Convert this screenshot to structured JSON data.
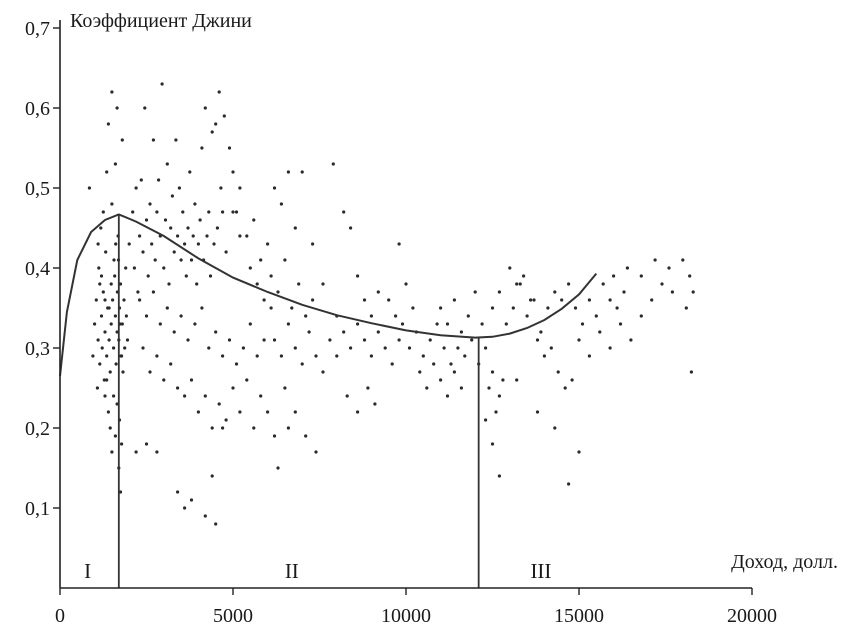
{
  "chart_data": {
    "type": "scatter",
    "title": "",
    "ylabel": "Коэффициент Джини",
    "xlabel": "Доход, долл.",
    "xlim": [
      0,
      20000
    ],
    "ylim": [
      0,
      0.7
    ],
    "x_ticks": [
      {
        "value": 0,
        "label": "0"
      },
      {
        "value": 5000,
        "label": "5000"
      },
      {
        "value": 10000,
        "label": "10000"
      },
      {
        "value": 15000,
        "label": "15000"
      },
      {
        "value": 20000,
        "label": "20000"
      }
    ],
    "y_ticks": [
      {
        "value": 0.1,
        "label": "0,1"
      },
      {
        "value": 0.2,
        "label": "0,2"
      },
      {
        "value": 0.3,
        "label": "0,3"
      },
      {
        "value": 0.4,
        "label": "0,4"
      },
      {
        "value": 0.5,
        "label": "0,5"
      },
      {
        "value": 0.6,
        "label": "0,6"
      },
      {
        "value": 0.7,
        "label": "0,7"
      }
    ],
    "zones": [
      {
        "label": "I",
        "x": 800
      },
      {
        "label": "II",
        "x": 6700
      },
      {
        "label": "III",
        "x": 13900
      }
    ],
    "dividers": [
      1700,
      12100
    ],
    "trend_curve": [
      [
        0,
        0.265
      ],
      [
        200,
        0.345
      ],
      [
        500,
        0.41
      ],
      [
        900,
        0.445
      ],
      [
        1300,
        0.46
      ],
      [
        1700,
        0.467
      ],
      [
        2200,
        0.458
      ],
      [
        3000,
        0.44
      ],
      [
        4000,
        0.412
      ],
      [
        5000,
        0.388
      ],
      [
        6000,
        0.37
      ],
      [
        7000,
        0.354
      ],
      [
        8000,
        0.341
      ],
      [
        9000,
        0.331
      ],
      [
        10000,
        0.322
      ],
      [
        11000,
        0.316
      ],
      [
        12000,
        0.313
      ],
      [
        12500,
        0.314
      ],
      [
        13000,
        0.318
      ],
      [
        13500,
        0.325
      ],
      [
        14000,
        0.335
      ],
      [
        14500,
        0.349
      ],
      [
        15000,
        0.367
      ],
      [
        15500,
        0.393
      ]
    ],
    "points": [
      [
        850,
        0.5
      ],
      [
        950,
        0.29
      ],
      [
        1000,
        0.33
      ],
      [
        1050,
        0.36
      ],
      [
        1080,
        0.25
      ],
      [
        1100,
        0.31
      ],
      [
        1120,
        0.4
      ],
      [
        1150,
        0.28
      ],
      [
        1180,
        0.45
      ],
      [
        1200,
        0.34
      ],
      [
        1220,
        0.3
      ],
      [
        1250,
        0.37
      ],
      [
        1280,
        0.26
      ],
      [
        1300,
        0.32
      ],
      [
        1320,
        0.42
      ],
      [
        1350,
        0.29
      ],
      [
        1380,
        0.35
      ],
      [
        1400,
        0.58
      ],
      [
        1420,
        0.31
      ],
      [
        1450,
        0.27
      ],
      [
        1480,
        0.33
      ],
      [
        1500,
        0.48
      ],
      [
        1520,
        0.36
      ],
      [
        1550,
        0.3
      ],
      [
        1580,
        0.39
      ],
      [
        1600,
        0.34
      ],
      [
        1620,
        0.28
      ],
      [
        1650,
        0.32
      ],
      [
        1680,
        0.44
      ],
      [
        1700,
        0.31
      ],
      [
        1720,
        0.35
      ],
      [
        1750,
        0.38
      ],
      [
        1780,
        0.29
      ],
      [
        1800,
        0.33
      ],
      [
        1820,
        0.27
      ],
      [
        1850,
        0.36
      ],
      [
        1870,
        0.3
      ],
      [
        1900,
        0.4
      ],
      [
        1920,
        0.34
      ],
      [
        1950,
        0.31
      ],
      [
        1400,
        0.22
      ],
      [
        1450,
        0.2
      ],
      [
        1500,
        0.17
      ],
      [
        1550,
        0.24
      ],
      [
        1600,
        0.19
      ],
      [
        1650,
        0.23
      ],
      [
        1700,
        0.15
      ],
      [
        1720,
        0.21
      ],
      [
        1750,
        0.12
      ],
      [
        1780,
        0.18
      ],
      [
        1300,
        0.24
      ],
      [
        1350,
        0.26
      ],
      [
        1420,
        0.35
      ],
      [
        1480,
        0.38
      ],
      [
        1560,
        0.41
      ],
      [
        1610,
        0.43
      ],
      [
        1660,
        0.37
      ],
      [
        1690,
        0.41
      ],
      [
        1730,
        0.33
      ],
      [
        1760,
        0.29
      ],
      [
        1500,
        0.62
      ],
      [
        1650,
        0.6
      ],
      [
        1800,
        0.56
      ],
      [
        1600,
        0.53
      ],
      [
        1350,
        0.52
      ],
      [
        1250,
        0.47
      ],
      [
        1150,
        0.38
      ],
      [
        1100,
        0.43
      ],
      [
        1200,
        0.39
      ],
      [
        1300,
        0.36
      ],
      [
        2000,
        0.43
      ],
      [
        2100,
        0.47
      ],
      [
        2150,
        0.4
      ],
      [
        2200,
        0.5
      ],
      [
        2250,
        0.37
      ],
      [
        2300,
        0.44
      ],
      [
        2350,
        0.51
      ],
      [
        2400,
        0.42
      ],
      [
        2450,
        0.6
      ],
      [
        2500,
        0.46
      ],
      [
        2550,
        0.39
      ],
      [
        2600,
        0.48
      ],
      [
        2650,
        0.43
      ],
      [
        2700,
        0.56
      ],
      [
        2750,
        0.41
      ],
      [
        2800,
        0.47
      ],
      [
        2850,
        0.51
      ],
      [
        2900,
        0.44
      ],
      [
        2950,
        0.63
      ],
      [
        3000,
        0.4
      ],
      [
        3050,
        0.46
      ],
      [
        3100,
        0.53
      ],
      [
        3150,
        0.38
      ],
      [
        3200,
        0.45
      ],
      [
        3250,
        0.49
      ],
      [
        3300,
        0.42
      ],
      [
        3350,
        0.56
      ],
      [
        3400,
        0.44
      ],
      [
        3450,
        0.5
      ],
      [
        3500,
        0.41
      ],
      [
        3550,
        0.47
      ],
      [
        3600,
        0.43
      ],
      [
        3650,
        0.39
      ],
      [
        3700,
        0.45
      ],
      [
        3750,
        0.52
      ],
      [
        3800,
        0.41
      ],
      [
        3850,
        0.44
      ],
      [
        3900,
        0.48
      ],
      [
        3950,
        0.38
      ],
      [
        4000,
        0.43
      ],
      [
        4050,
        0.46
      ],
      [
        4100,
        0.55
      ],
      [
        4150,
        0.41
      ],
      [
        4200,
        0.6
      ],
      [
        4250,
        0.44
      ],
      [
        4300,
        0.47
      ],
      [
        4350,
        0.39
      ],
      [
        4400,
        0.57
      ],
      [
        4450,
        0.43
      ],
      [
        4500,
        0.58
      ],
      [
        4550,
        0.45
      ],
      [
        4600,
        0.62
      ],
      [
        4650,
        0.5
      ],
      [
        4700,
        0.47
      ],
      [
        4750,
        0.59
      ],
      [
        4800,
        0.42
      ],
      [
        4900,
        0.55
      ],
      [
        5000,
        0.52
      ],
      [
        5100,
        0.47
      ],
      [
        5200,
        0.44
      ],
      [
        2300,
        0.36
      ],
      [
        2500,
        0.34
      ],
      [
        2700,
        0.37
      ],
      [
        2900,
        0.33
      ],
      [
        3100,
        0.35
      ],
      [
        3300,
        0.32
      ],
      [
        3500,
        0.34
      ],
      [
        3700,
        0.31
      ],
      [
        3900,
        0.33
      ],
      [
        4100,
        0.35
      ],
      [
        4300,
        0.3
      ],
      [
        4500,
        0.32
      ],
      [
        4700,
        0.29
      ],
      [
        4900,
        0.31
      ],
      [
        5100,
        0.28
      ],
      [
        5300,
        0.3
      ],
      [
        5500,
        0.33
      ],
      [
        5700,
        0.29
      ],
      [
        5900,
        0.31
      ],
      [
        6100,
        0.35
      ],
      [
        2400,
        0.3
      ],
      [
        2600,
        0.27
      ],
      [
        2800,
        0.29
      ],
      [
        3000,
        0.26
      ],
      [
        3200,
        0.28
      ],
      [
        3400,
        0.25
      ],
      [
        3600,
        0.24
      ],
      [
        3800,
        0.26
      ],
      [
        4000,
        0.22
      ],
      [
        4200,
        0.24
      ],
      [
        4400,
        0.2
      ],
      [
        4600,
        0.23
      ],
      [
        4800,
        0.21
      ],
      [
        5000,
        0.25
      ],
      [
        5200,
        0.22
      ],
      [
        5400,
        0.26
      ],
      [
        5600,
        0.2
      ],
      [
        5800,
        0.24
      ],
      [
        6000,
        0.22
      ],
      [
        6200,
        0.19
      ],
      [
        2200,
        0.17
      ],
      [
        2500,
        0.18
      ],
      [
        2800,
        0.17
      ],
      [
        3400,
        0.12
      ],
      [
        3600,
        0.1
      ],
      [
        3800,
        0.11
      ],
      [
        4200,
        0.09
      ],
      [
        4500,
        0.08
      ],
      [
        4400,
        0.14
      ],
      [
        4700,
        0.2
      ],
      [
        5000,
        0.47
      ],
      [
        5200,
        0.5
      ],
      [
        5400,
        0.44
      ],
      [
        5600,
        0.46
      ],
      [
        5800,
        0.41
      ],
      [
        6000,
        0.43
      ],
      [
        6200,
        0.5
      ],
      [
        6400,
        0.48
      ],
      [
        6600,
        0.52
      ],
      [
        6800,
        0.45
      ],
      [
        5500,
        0.4
      ],
      [
        5700,
        0.38
      ],
      [
        5900,
        0.36
      ],
      [
        6100,
        0.39
      ],
      [
        6300,
        0.37
      ],
      [
        6500,
        0.41
      ],
      [
        6700,
        0.35
      ],
      [
        6900,
        0.38
      ],
      [
        7100,
        0.34
      ],
      [
        7300,
        0.36
      ],
      [
        6200,
        0.31
      ],
      [
        6400,
        0.29
      ],
      [
        6600,
        0.33
      ],
      [
        6800,
        0.3
      ],
      [
        7000,
        0.28
      ],
      [
        7200,
        0.32
      ],
      [
        7400,
        0.29
      ],
      [
        7600,
        0.27
      ],
      [
        7800,
        0.31
      ],
      [
        8000,
        0.29
      ],
      [
        7000,
        0.52
      ],
      [
        7300,
        0.43
      ],
      [
        7600,
        0.38
      ],
      [
        7900,
        0.53
      ],
      [
        8200,
        0.47
      ],
      [
        8400,
        0.45
      ],
      [
        8600,
        0.39
      ],
      [
        8800,
        0.36
      ],
      [
        9000,
        0.34
      ],
      [
        9200,
        0.37
      ],
      [
        6500,
        0.25
      ],
      [
        6800,
        0.22
      ],
      [
        7100,
        0.19
      ],
      [
        7400,
        0.17
      ],
      [
        6300,
        0.15
      ],
      [
        6600,
        0.2
      ],
      [
        8300,
        0.24
      ],
      [
        8600,
        0.22
      ],
      [
        8900,
        0.25
      ],
      [
        9100,
        0.23
      ],
      [
        8000,
        0.34
      ],
      [
        8200,
        0.32
      ],
      [
        8400,
        0.3
      ],
      [
        8600,
        0.33
      ],
      [
        8800,
        0.31
      ],
      [
        9000,
        0.29
      ],
      [
        9200,
        0.32
      ],
      [
        9400,
        0.3
      ],
      [
        9600,
        0.28
      ],
      [
        9800,
        0.31
      ],
      [
        9500,
        0.36
      ],
      [
        9700,
        0.34
      ],
      [
        9900,
        0.33
      ],
      [
        10100,
        0.3
      ],
      [
        10300,
        0.32
      ],
      [
        10500,
        0.29
      ],
      [
        10700,
        0.31
      ],
      [
        10900,
        0.33
      ],
      [
        11100,
        0.3
      ],
      [
        11300,
        0.28
      ],
      [
        9800,
        0.43
      ],
      [
        10000,
        0.38
      ],
      [
        10200,
        0.35
      ],
      [
        10400,
        0.27
      ],
      [
        10600,
        0.25
      ],
      [
        10800,
        0.28
      ],
      [
        11000,
        0.26
      ],
      [
        11200,
        0.24
      ],
      [
        11400,
        0.27
      ],
      [
        11600,
        0.25
      ],
      [
        11000,
        0.35
      ],
      [
        11200,
        0.33
      ],
      [
        11400,
        0.36
      ],
      [
        11600,
        0.32
      ],
      [
        11800,
        0.34
      ],
      [
        12000,
        0.37
      ],
      [
        11500,
        0.3
      ],
      [
        11700,
        0.29
      ],
      [
        11900,
        0.31
      ],
      [
        12200,
        0.33
      ],
      [
        12100,
        0.28
      ],
      [
        12300,
        0.3
      ],
      [
        12400,
        0.25
      ],
      [
        12500,
        0.27
      ],
      [
        12600,
        0.22
      ],
      [
        12700,
        0.24
      ],
      [
        12800,
        0.26
      ],
      [
        12300,
        0.21
      ],
      [
        12500,
        0.18
      ],
      [
        12700,
        0.14
      ],
      [
        12500,
        0.35
      ],
      [
        12700,
        0.37
      ],
      [
        12900,
        0.33
      ],
      [
        13100,
        0.35
      ],
      [
        13300,
        0.38
      ],
      [
        13500,
        0.34
      ],
      [
        13700,
        0.36
      ],
      [
        13900,
        0.32
      ],
      [
        14100,
        0.35
      ],
      [
        14300,
        0.37
      ],
      [
        13000,
        0.4
      ],
      [
        13200,
        0.38
      ],
      [
        13400,
        0.39
      ],
      [
        13600,
        0.36
      ],
      [
        13800,
        0.31
      ],
      [
        14000,
        0.29
      ],
      [
        14200,
        0.3
      ],
      [
        14400,
        0.27
      ],
      [
        14600,
        0.25
      ],
      [
        14800,
        0.26
      ],
      [
        14500,
        0.36
      ],
      [
        14700,
        0.38
      ],
      [
        14900,
        0.35
      ],
      [
        15100,
        0.33
      ],
      [
        15300,
        0.36
      ],
      [
        15500,
        0.34
      ],
      [
        15700,
        0.38
      ],
      [
        15900,
        0.36
      ],
      [
        16100,
        0.35
      ],
      [
        16300,
        0.37
      ],
      [
        15000,
        0.31
      ],
      [
        15300,
        0.29
      ],
      [
        15600,
        0.32
      ],
      [
        15900,
        0.3
      ],
      [
        16200,
        0.33
      ],
      [
        16500,
        0.31
      ],
      [
        16800,
        0.34
      ],
      [
        17100,
        0.36
      ],
      [
        17400,
        0.38
      ],
      [
        17700,
        0.37
      ],
      [
        16000,
        0.39
      ],
      [
        16400,
        0.4
      ],
      [
        16800,
        0.39
      ],
      [
        17200,
        0.41
      ],
      [
        17600,
        0.4
      ],
      [
        18000,
        0.41
      ],
      [
        18200,
        0.39
      ],
      [
        18300,
        0.37
      ],
      [
        18100,
        0.35
      ],
      [
        18250,
        0.27
      ],
      [
        14700,
        0.13
      ],
      [
        15000,
        0.17
      ],
      [
        14300,
        0.2
      ],
      [
        13800,
        0.22
      ],
      [
        13200,
        0.26
      ]
    ]
  }
}
